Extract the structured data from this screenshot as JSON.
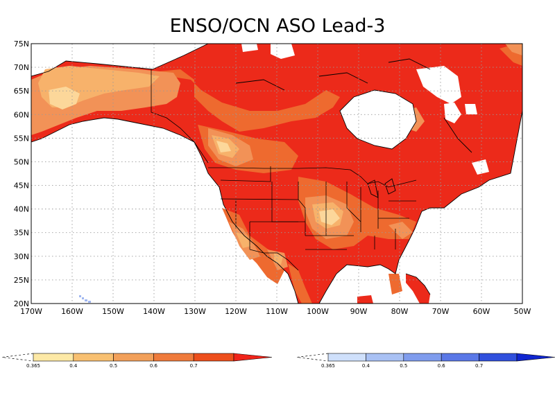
{
  "title": "ENSO/OCN ASO Lead-3",
  "map": {
    "lon_range": [
      -170,
      -50
    ],
    "lat_range": [
      20,
      75
    ],
    "lon_ticks": [
      "170W",
      "160W",
      "150W",
      "140W",
      "130W",
      "120W",
      "110W",
      "100W",
      "90W",
      "80W",
      "70W",
      "60W",
      "50W"
    ],
    "lat_ticks": [
      "75N",
      "70N",
      "65N",
      "60N",
      "55N",
      "50N",
      "45N",
      "40N",
      "35N",
      "30N",
      "25N",
      "20N"
    ],
    "grid": true
  },
  "colorbars": {
    "warm": {
      "labels": [
        "0.365",
        "0.4",
        "0.5",
        "0.6",
        "0.7"
      ],
      "colors": [
        "#fde9a6",
        "#f8c071",
        "#f2a05a",
        "#ef7b3c",
        "#ed4f1c",
        "#f0241a"
      ]
    },
    "cold": {
      "labels": [
        "0.365",
        "0.4",
        "0.5",
        "0.6",
        "0.7"
      ],
      "colors": [
        "#cfe0fb",
        "#a9c1f4",
        "#7f9ced",
        "#5a78e7",
        "#3050dd",
        "#1026d0"
      ]
    }
  },
  "fill_colors": {
    "c1": "#fcd79a",
    "c2": "#f7b26b",
    "c3": "#f29257",
    "c4": "#ee6a2f",
    "c5": "#ec2a1a",
    "land": "#ffffff",
    "blue": "#9fb6f0"
  }
}
